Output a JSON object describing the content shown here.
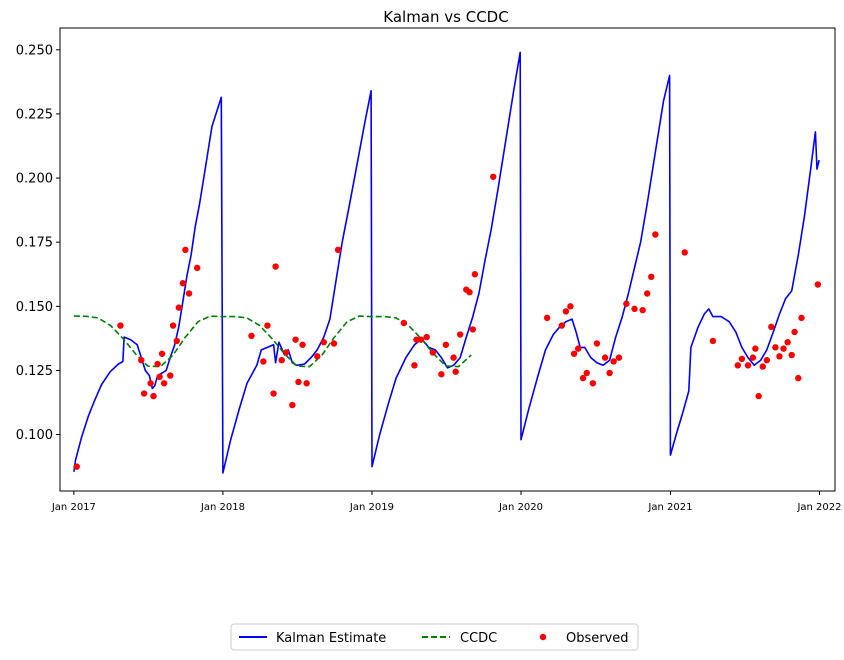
{
  "chart_data": {
    "type": "line",
    "title": "Kalman vs CCDC",
    "xlabel": "",
    "ylabel": "",
    "xlim": [
      "2016-11-28",
      "2022-02-08"
    ],
    "ylim": [
      0.078,
      0.2585
    ],
    "x_ticks": [
      "Jan 2017",
      "Jan 2018",
      "Jan 2019",
      "Jan 2020",
      "Jan 2021",
      "Jan 2022"
    ],
    "x_tick_dates": [
      "2017-01-01",
      "2018-01-01",
      "2019-01-01",
      "2020-01-01",
      "2021-01-01",
      "2022-01-01"
    ],
    "y_ticks": [
      "0.100",
      "0.125",
      "0.150",
      "0.175",
      "0.200",
      "0.225",
      "0.250"
    ],
    "y_tick_values": [
      0.1,
      0.125,
      0.15,
      0.175,
      0.2,
      0.225,
      0.25
    ],
    "grid": false,
    "legend_position": "bottom-center",
    "series": [
      {
        "name": "Kalman Estimate",
        "style": "solid",
        "color": "#0000ff",
        "points": [
          [
            "2017-01-01",
            0.0855
          ],
          [
            "2017-01-05",
            0.09
          ],
          [
            "2017-01-20",
            0.099
          ],
          [
            "2017-02-05",
            0.107
          ],
          [
            "2017-02-20",
            0.113
          ],
          [
            "2017-03-10",
            0.1195
          ],
          [
            "2017-03-31",
            0.1245
          ],
          [
            "2017-04-20",
            0.1275
          ],
          [
            "2017-05-01",
            0.1285
          ],
          [
            "2017-05-04",
            0.138
          ],
          [
            "2017-05-20",
            0.137
          ],
          [
            "2017-06-05",
            0.135
          ],
          [
            "2017-06-15",
            0.13
          ],
          [
            "2017-06-25",
            0.125
          ],
          [
            "2017-07-05",
            0.123
          ],
          [
            "2017-07-12",
            0.118
          ],
          [
            "2017-07-18",
            0.119
          ],
          [
            "2017-07-25",
            0.123
          ],
          [
            "2017-08-05",
            0.124
          ],
          [
            "2017-08-15",
            0.125
          ],
          [
            "2017-08-25",
            0.13
          ],
          [
            "2017-09-05",
            0.135
          ],
          [
            "2017-09-15",
            0.142
          ],
          [
            "2017-09-25",
            0.152
          ],
          [
            "2017-10-05",
            0.162
          ],
          [
            "2017-10-15",
            0.17
          ],
          [
            "2017-10-25",
            0.181
          ],
          [
            "2017-11-05",
            0.19
          ],
          [
            "2017-11-20",
            0.205
          ],
          [
            "2017-12-05",
            0.22
          ],
          [
            "2017-12-28",
            0.2315
          ],
          [
            "2018-01-01",
            0.085
          ],
          [
            "2018-01-20",
            0.098
          ],
          [
            "2018-02-10",
            0.11
          ],
          [
            "2018-03-01",
            0.12
          ],
          [
            "2018-03-25",
            0.127
          ],
          [
            "2018-04-05",
            0.133
          ],
          [
            "2018-04-20",
            0.134
          ],
          [
            "2018-05-05",
            0.135
          ],
          [
            "2018-05-10",
            0.128
          ],
          [
            "2018-05-18",
            0.136
          ],
          [
            "2018-06-01",
            0.131
          ],
          [
            "2018-06-10",
            0.133
          ],
          [
            "2018-06-20",
            0.128
          ],
          [
            "2018-07-01",
            0.127
          ],
          [
            "2018-07-20",
            0.1275
          ],
          [
            "2018-08-05",
            0.13
          ],
          [
            "2018-08-20",
            0.133
          ],
          [
            "2018-09-05",
            0.138
          ],
          [
            "2018-09-20",
            0.145
          ],
          [
            "2018-10-05",
            0.16
          ],
          [
            "2018-10-20",
            0.175
          ],
          [
            "2018-11-05",
            0.188
          ],
          [
            "2018-11-25",
            0.205
          ],
          [
            "2018-12-15",
            0.222
          ],
          [
            "2018-12-30",
            0.234
          ],
          [
            "2019-01-01",
            0.0875
          ],
          [
            "2019-01-20",
            0.1
          ],
          [
            "2019-02-10",
            0.112
          ],
          [
            "2019-03-01",
            0.122
          ],
          [
            "2019-03-25",
            0.13
          ],
          [
            "2019-04-15",
            0.135
          ],
          [
            "2019-05-01",
            0.137
          ],
          [
            "2019-05-10",
            0.136
          ],
          [
            "2019-05-20",
            0.134
          ],
          [
            "2019-06-05",
            0.133
          ],
          [
            "2019-06-20",
            0.13
          ],
          [
            "2019-07-05",
            0.126
          ],
          [
            "2019-07-20",
            0.127
          ],
          [
            "2019-08-05",
            0.13
          ],
          [
            "2019-08-20",
            0.138
          ],
          [
            "2019-09-05",
            0.146
          ],
          [
            "2019-09-20",
            0.155
          ],
          [
            "2019-10-05",
            0.168
          ],
          [
            "2019-10-20",
            0.18
          ],
          [
            "2019-11-05",
            0.195
          ],
          [
            "2019-11-25",
            0.215
          ],
          [
            "2019-12-15",
            0.235
          ],
          [
            "2019-12-30",
            0.249
          ],
          [
            "2020-01-01",
            0.098
          ],
          [
            "2020-01-20",
            0.11
          ],
          [
            "2020-02-10",
            0.122
          ],
          [
            "2020-03-01",
            0.133
          ],
          [
            "2020-03-20",
            0.139
          ],
          [
            "2020-04-05",
            0.142
          ],
          [
            "2020-04-20",
            0.144
          ],
          [
            "2020-05-05",
            0.145
          ],
          [
            "2020-05-15",
            0.14
          ],
          [
            "2020-05-25",
            0.134
          ],
          [
            "2020-06-05",
            0.134
          ],
          [
            "2020-06-20",
            0.13
          ],
          [
            "2020-07-05",
            0.128
          ],
          [
            "2020-07-20",
            0.127
          ],
          [
            "2020-08-05",
            0.129
          ],
          [
            "2020-08-20",
            0.138
          ],
          [
            "2020-09-05",
            0.146
          ],
          [
            "2020-09-20",
            0.155
          ],
          [
            "2020-10-05",
            0.165
          ],
          [
            "2020-10-20",
            0.175
          ],
          [
            "2020-11-05",
            0.19
          ],
          [
            "2020-11-25",
            0.21
          ],
          [
            "2020-12-15",
            0.23
          ],
          [
            "2020-12-30",
            0.24
          ],
          [
            "2021-01-01",
            0.092
          ],
          [
            "2021-01-15",
            0.1
          ],
          [
            "2021-02-01",
            0.109
          ],
          [
            "2021-02-15",
            0.117
          ],
          [
            "2021-02-20",
            0.134
          ],
          [
            "2021-03-10",
            0.142
          ],
          [
            "2021-03-25",
            0.147
          ],
          [
            "2021-04-05",
            0.149
          ],
          [
            "2021-04-15",
            0.146
          ],
          [
            "2021-05-05",
            0.146
          ],
          [
            "2021-05-25",
            0.144
          ],
          [
            "2021-06-10",
            0.14
          ],
          [
            "2021-06-25",
            0.134
          ],
          [
            "2021-07-10",
            0.13
          ],
          [
            "2021-07-25",
            0.127
          ],
          [
            "2021-08-10",
            0.129
          ],
          [
            "2021-08-25",
            0.133
          ],
          [
            "2021-09-10",
            0.14
          ],
          [
            "2021-09-25",
            0.147
          ],
          [
            "2021-10-10",
            0.153
          ],
          [
            "2021-10-25",
            0.156
          ],
          [
            "2021-11-10",
            0.17
          ],
          [
            "2021-11-25",
            0.185
          ],
          [
            "2021-12-10",
            0.203
          ],
          [
            "2021-12-22",
            0.218
          ],
          [
            "2021-12-26",
            0.2035
          ],
          [
            "2021-12-31",
            0.207
          ]
        ]
      },
      {
        "name": "CCDC",
        "style": "dashed",
        "color": "#008000",
        "points": [
          [
            "2017-01-01",
            0.1462
          ],
          [
            "2017-02-01",
            0.1461
          ],
          [
            "2017-03-01",
            0.1455
          ],
          [
            "2017-04-01",
            0.1425
          ],
          [
            "2017-05-01",
            0.1375
          ],
          [
            "2017-06-01",
            0.1315
          ],
          [
            "2017-07-01",
            0.1267
          ],
          [
            "2017-08-01",
            0.1265
          ],
          [
            "2017-09-01",
            0.131
          ],
          [
            "2017-10-01",
            0.138
          ],
          [
            "2017-11-01",
            0.144
          ],
          [
            "2017-12-01",
            0.1462
          ],
          [
            "2018-01-01",
            0.146
          ],
          [
            "2018-02-01",
            0.146
          ],
          [
            "2018-03-01",
            0.1455
          ],
          [
            "2018-04-01",
            0.1425
          ],
          [
            "2018-05-01",
            0.1375
          ],
          [
            "2018-06-01",
            0.1315
          ],
          [
            "2018-07-01",
            0.1267
          ],
          [
            "2018-08-01",
            0.1265
          ],
          [
            "2018-09-01",
            0.131
          ],
          [
            "2018-10-01",
            0.138
          ],
          [
            "2018-11-01",
            0.144
          ],
          [
            "2018-12-01",
            0.1462
          ],
          [
            "2019-01-01",
            0.146
          ],
          [
            "2019-02-01",
            0.146
          ],
          [
            "2019-03-01",
            0.1455
          ],
          [
            "2019-04-01",
            0.1425
          ],
          [
            "2019-05-01",
            0.1375
          ],
          [
            "2019-06-01",
            0.1315
          ],
          [
            "2019-07-01",
            0.1267
          ],
          [
            "2019-08-01",
            0.1265
          ],
          [
            "2019-09-01",
            0.131
          ]
        ]
      },
      {
        "name": "Observed",
        "style": "markers",
        "color": "#ff0000",
        "points": [
          [
            "2017-01-08",
            0.0875
          ],
          [
            "2017-04-25",
            0.1425
          ],
          [
            "2017-06-15",
            0.129
          ],
          [
            "2017-06-22",
            0.116
          ],
          [
            "2017-07-08",
            0.12
          ],
          [
            "2017-07-15",
            0.115
          ],
          [
            "2017-07-25",
            0.1275
          ],
          [
            "2017-07-30",
            0.1225
          ],
          [
            "2017-08-05",
            0.1315
          ],
          [
            "2017-08-10",
            0.12
          ],
          [
            "2017-08-25",
            0.123
          ],
          [
            "2017-09-01",
            0.1425
          ],
          [
            "2017-09-10",
            0.1365
          ],
          [
            "2017-09-15",
            0.1495
          ],
          [
            "2017-09-25",
            0.159
          ],
          [
            "2017-10-01",
            0.172
          ],
          [
            "2017-10-10",
            0.155
          ],
          [
            "2017-10-30",
            0.165
          ],
          [
            "2018-03-12",
            0.1385
          ],
          [
            "2018-04-10",
            0.1285
          ],
          [
            "2018-04-20",
            0.1425
          ],
          [
            "2018-05-05",
            0.116
          ],
          [
            "2018-05-10",
            0.1655
          ],
          [
            "2018-05-25",
            0.129
          ],
          [
            "2018-06-05",
            0.132
          ],
          [
            "2018-06-20",
            0.1115
          ],
          [
            "2018-06-28",
            0.137
          ],
          [
            "2018-07-05",
            0.1205
          ],
          [
            "2018-07-15",
            0.135
          ],
          [
            "2018-07-25",
            0.12
          ],
          [
            "2018-08-20",
            0.1305
          ],
          [
            "2018-09-05",
            0.136
          ],
          [
            "2018-09-30",
            0.1355
          ],
          [
            "2018-10-10",
            0.172
          ],
          [
            "2019-03-20",
            0.1435
          ],
          [
            "2019-04-15",
            0.127
          ],
          [
            "2019-04-20",
            0.137
          ],
          [
            "2019-05-01",
            0.137
          ],
          [
            "2019-05-15",
            0.138
          ],
          [
            "2019-05-30",
            0.132
          ],
          [
            "2019-06-20",
            0.1235
          ],
          [
            "2019-07-01",
            0.135
          ],
          [
            "2019-07-20",
            0.13
          ],
          [
            "2019-07-25",
            0.1245
          ],
          [
            "2019-08-05",
            0.139
          ],
          [
            "2019-08-20",
            0.1565
          ],
          [
            "2019-08-28",
            0.1555
          ],
          [
            "2019-09-05",
            0.141
          ],
          [
            "2019-09-10",
            0.1625
          ],
          [
            "2019-10-25",
            0.2005
          ],
          [
            "2020-03-05",
            0.1455
          ],
          [
            "2020-04-10",
            0.1425
          ],
          [
            "2020-04-20",
            0.148
          ],
          [
            "2020-05-01",
            0.15
          ],
          [
            "2020-05-10",
            0.1315
          ],
          [
            "2020-05-20",
            0.1335
          ],
          [
            "2020-06-01",
            0.122
          ],
          [
            "2020-06-10",
            0.124
          ],
          [
            "2020-06-25",
            0.12
          ],
          [
            "2020-07-05",
            0.1355
          ],
          [
            "2020-07-25",
            0.13
          ],
          [
            "2020-08-05",
            0.124
          ],
          [
            "2020-08-15",
            0.1285
          ],
          [
            "2020-08-28",
            0.13
          ],
          [
            "2020-09-15",
            0.151
          ],
          [
            "2020-10-05",
            0.149
          ],
          [
            "2020-10-25",
            0.1485
          ],
          [
            "2020-11-05",
            0.155
          ],
          [
            "2020-11-15",
            0.1615
          ],
          [
            "2020-11-25",
            0.178
          ],
          [
            "2021-02-05",
            0.171
          ],
          [
            "2021-04-15",
            0.1365
          ],
          [
            "2021-06-15",
            0.127
          ],
          [
            "2021-06-25",
            0.1295
          ],
          [
            "2021-07-10",
            0.127
          ],
          [
            "2021-07-22",
            0.13
          ],
          [
            "2021-07-28",
            0.1335
          ],
          [
            "2021-08-05",
            0.115
          ],
          [
            "2021-08-15",
            0.1265
          ],
          [
            "2021-08-25",
            0.129
          ],
          [
            "2021-09-05",
            0.142
          ],
          [
            "2021-09-15",
            0.134
          ],
          [
            "2021-09-25",
            0.1305
          ],
          [
            "2021-10-05",
            0.1335
          ],
          [
            "2021-10-15",
            0.136
          ],
          [
            "2021-10-25",
            0.131
          ],
          [
            "2021-11-01",
            0.14
          ],
          [
            "2021-11-10",
            0.122
          ],
          [
            "2021-11-18",
            0.1455
          ],
          [
            "2021-12-28",
            0.1585
          ]
        ]
      }
    ]
  }
}
